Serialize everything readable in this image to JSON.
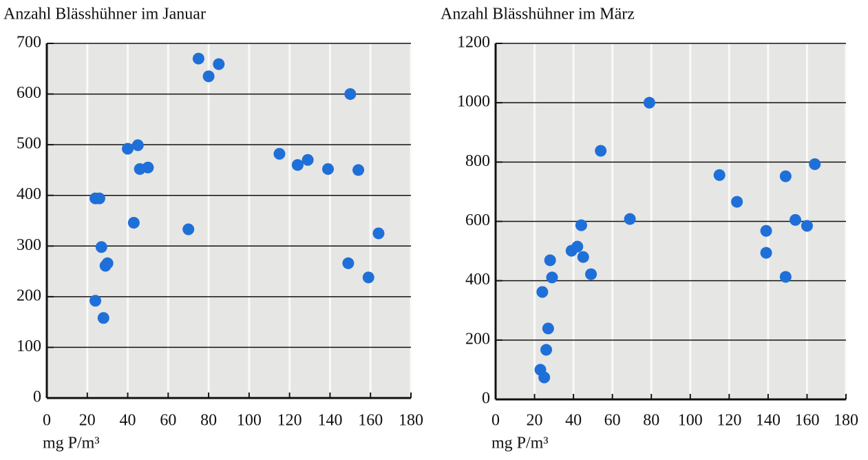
{
  "chart_data": [
    {
      "type": "scatter",
      "title": "Anzahl Blässhühner im Januar",
      "x_label": "mg P/m³",
      "color": "#1f6fd8",
      "xlim": [
        0,
        180
      ],
      "xticks": [
        0,
        20,
        40,
        60,
        80,
        100,
        120,
        140,
        160,
        180
      ],
      "ylim": [
        0,
        700
      ],
      "yticks": [
        0,
        100,
        200,
        300,
        400,
        500,
        600,
        700
      ],
      "grid": true,
      "series": [
        {
          "x": [
            75,
            80,
            85,
            150,
            40,
            45,
            46,
            50,
            24,
            26,
            43,
            70,
            27,
            29,
            30,
            24,
            28,
            115,
            124,
            129,
            139,
            154,
            149,
            159,
            164
          ],
          "values": [
            670,
            635,
            659,
            600,
            492,
            499,
            452,
            455,
            394,
            394,
            346,
            333,
            298,
            261,
            266,
            192,
            158,
            482,
            460,
            470,
            452,
            450,
            266,
            238,
            325
          ]
        }
      ]
    },
    {
      "type": "scatter",
      "title": "Anzahl Blässhühner im März",
      "x_label": "mg P/m³",
      "color": "#1f6fd8",
      "xlim": [
        0,
        180
      ],
      "xticks": [
        0,
        20,
        40,
        60,
        80,
        100,
        120,
        140,
        160,
        180
      ],
      "ylim": [
        0,
        1200
      ],
      "yticks": [
        0,
        200,
        400,
        600,
        800,
        1000,
        1200
      ],
      "grid": true,
      "series": [
        {
          "x": [
            79,
            54,
            115,
            124,
            139,
            139,
            149,
            149,
            154,
            160,
            164,
            69,
            44,
            39,
            42,
            45,
            49,
            28,
            29,
            24,
            27,
            26,
            23,
            25
          ],
          "values": [
            1000,
            838,
            756,
            666,
            568,
            494,
            752,
            413,
            605,
            585,
            793,
            608,
            587,
            501,
            515,
            480,
            422,
            469,
            411,
            362,
            239,
            167,
            100,
            74
          ]
        }
      ]
    }
  ]
}
